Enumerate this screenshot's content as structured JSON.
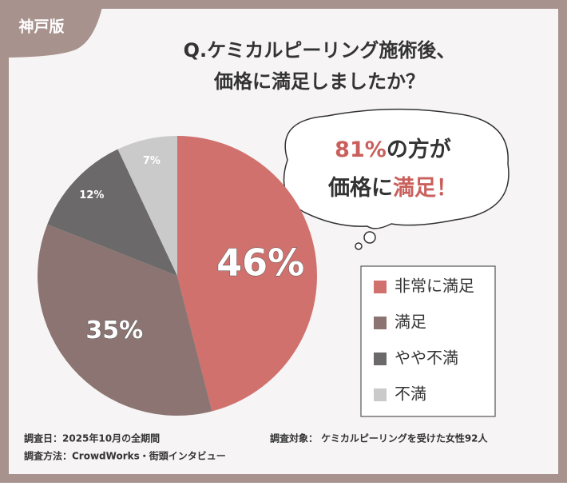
{
  "badge": "神戸版",
  "chart_data": {
    "type": "pie",
    "title_lines": [
      "Q.ケミカルピーリング施術後、",
      "価格に満足しましたか？"
    ],
    "categories": [
      "非常に満足",
      "満足",
      "やや不満",
      "不満"
    ],
    "values": [
      46,
      35,
      12,
      7
    ],
    "value_labels": [
      "46%",
      "35%",
      "12%",
      "7%"
    ],
    "colors": [
      "#d0716d",
      "#8b7471",
      "#6b6969",
      "#cbcaca"
    ],
    "legend": "right"
  },
  "bubble": {
    "lines": [
      [
        {
          "text": "81%",
          "highlight": true
        },
        {
          "text": "の方が",
          "highlight": false
        }
      ],
      [
        {
          "text": "価格に",
          "highlight": false
        },
        {
          "text": "満足！",
          "highlight": true
        }
      ]
    ]
  },
  "footer": {
    "left": [
      "調査日：2025年10月の全期間",
      "調査方法：CrowdWorks・街頭インタビュー"
    ],
    "right": "調査対象： ケミカルピーリングを受けた女性92人"
  }
}
